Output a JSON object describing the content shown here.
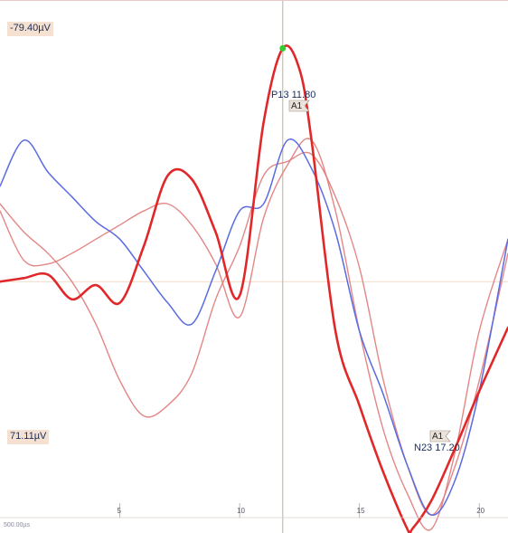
{
  "scale": {
    "top_label": "-79.40µV",
    "bottom_label": "71.11µV"
  },
  "footer": {
    "label": "500.00µs"
  },
  "peaks": [
    {
      "name": "P13",
      "latency": 11.8,
      "label": "P13 11.80",
      "tag": "A1",
      "marker_color": "#33cc33"
    },
    {
      "name": "N23",
      "latency": 17.2,
      "label": "N23 17.20",
      "tag": "A1"
    }
  ],
  "colors": {
    "trace_bold": "#e0282a",
    "trace_blue": "#5a6be0",
    "trace_light": "#e07a7a",
    "gridline": "#b8b0a8",
    "baseline": "#f0dcc8",
    "scale_bg": "#f4e1d2"
  },
  "chart_data": {
    "type": "line",
    "title": "",
    "xlabel": "",
    "ylabel": "",
    "xlim": [
      0,
      21.2
    ],
    "ylim": [
      -79.4,
      71.11
    ],
    "y_axis_inverted": true,
    "baseline_y": 0,
    "x_ticks": [
      5,
      10,
      15,
      20
    ],
    "x_tick_labels": [
      "5",
      "10",
      "15",
      "20"
    ],
    "cursor_x": 11.8,
    "series": [
      {
        "style": "bold",
        "x": [
          0,
          1,
          2,
          3,
          4,
          5,
          6,
          7,
          8,
          9,
          10,
          11,
          11.8,
          12.5,
          13,
          14,
          15,
          16,
          17,
          17.2,
          18,
          19,
          20,
          21.2
        ],
        "y": [
          0,
          -1,
          -2,
          5,
          1,
          6,
          -10,
          -30,
          -29,
          -14,
          4,
          -45,
          -66,
          -60,
          -40,
          14,
          35,
          54,
          70,
          70,
          62,
          47,
          31,
          13
        ]
      },
      {
        "style": "blue",
        "x": [
          0,
          1,
          2,
          3,
          4,
          5,
          6,
          7,
          8,
          9,
          10,
          11,
          12,
          13,
          14,
          15,
          16,
          17,
          18,
          19,
          20,
          21.2
        ],
        "y": [
          -27,
          -40,
          -31,
          -24,
          -17,
          -12,
          -3,
          6,
          12,
          -3,
          -20,
          -22,
          -40,
          -32,
          -14,
          14,
          32,
          52,
          66,
          56,
          31,
          -12
        ]
      },
      {
        "style": "light",
        "x": [
          0,
          1,
          2,
          3,
          4,
          5,
          6,
          7,
          8,
          9,
          10,
          11,
          12,
          13,
          14,
          15,
          16,
          17,
          18,
          19,
          20,
          21.2
        ],
        "y": [
          -20,
          -6,
          -5,
          -8,
          -12,
          -16,
          -20,
          -22,
          -16,
          -5,
          10,
          -18,
          -33,
          -40,
          -20,
          14,
          42,
          60,
          70,
          48,
          14,
          -12
        ]
      },
      {
        "style": "light",
        "x": [
          0,
          1,
          2,
          3,
          4,
          5,
          6,
          7,
          8,
          9,
          10,
          11,
          12,
          13,
          14,
          15,
          16,
          17,
          18,
          19,
          20,
          21.2
        ],
        "y": [
          -22,
          -14,
          -8,
          0,
          12,
          28,
          38,
          35,
          26,
          5,
          -10,
          -30,
          -34,
          -36,
          -24,
          -4,
          28,
          52,
          66,
          52,
          28,
          -8
        ]
      }
    ]
  }
}
